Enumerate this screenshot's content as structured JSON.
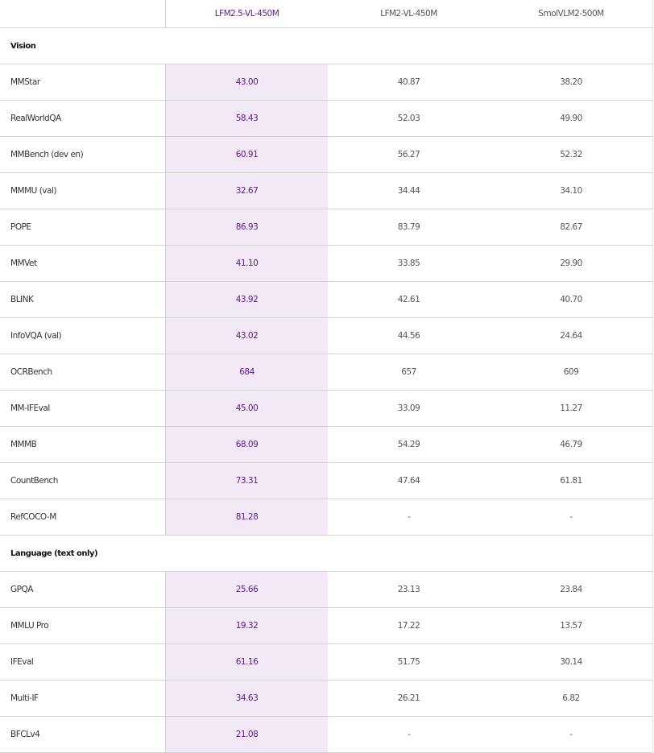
{
  "table": {
    "header_columns": [
      "LFM2.5-VL-450M",
      "LFM2-VL-450M",
      "SmolVLM2-500M"
    ],
    "sections": [
      {
        "title": "Vision",
        "rows": [
          [
            "MMStar",
            "43.00",
            "40.87",
            "38.20"
          ],
          [
            "RealWorldQA",
            "58.43",
            "52.03",
            "49.90"
          ],
          [
            "MMBench (dev en)",
            "60.91",
            "56.27",
            "52.32"
          ],
          [
            "MMMU (val)",
            "32.67",
            "34.44",
            "34.10"
          ],
          [
            "POPE",
            "86.93",
            "83.79",
            "82.67"
          ],
          [
            "MMVet",
            "41.10",
            "33.85",
            "29.90"
          ],
          [
            "BLINK",
            "43.92",
            "42.61",
            "40.70"
          ],
          [
            "InfoVQA (val)",
            "43.02",
            "44.56",
            "24.64"
          ],
          [
            "OCRBench",
            "684",
            "657",
            "609"
          ],
          [
            "MM-IFEval",
            "45.00",
            "33.09",
            "11.27"
          ],
          [
            "MMMB",
            "68.09",
            "54.29",
            "46.79"
          ],
          [
            "CountBench",
            "73.31",
            "47.64",
            "61.81"
          ],
          [
            "RefCOCO-M",
            "81.28",
            "-",
            "-"
          ]
        ]
      },
      {
        "title": "Language (text only)",
        "rows": [
          [
            "GPQA",
            "25.66",
            "23.13",
            "23.84"
          ],
          [
            "MMLU Pro",
            "19.32",
            "17.22",
            "13.57"
          ],
          [
            "IFEval",
            "61.16",
            "51.75",
            "30.14"
          ],
          [
            "Multi-IF",
            "34.63",
            "26.21",
            "6.82"
          ],
          [
            "BFCLv4",
            "21.08",
            "-",
            "-"
          ]
        ]
      }
    ]
  }
}
